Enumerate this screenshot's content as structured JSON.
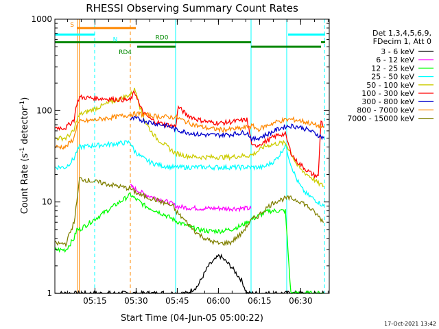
{
  "chart_data": {
    "type": "line",
    "title": "RHESSI Observing Summary Count Rates",
    "xlabel": "Start Time (04-Jun-05 05:00:22)",
    "ylabel_parts": [
      "Count Rate (s",
      "-1",
      " detector",
      "-1",
      ")"
    ],
    "yscale": "log",
    "ylim": [
      1,
      1000
    ],
    "xlim_minutes": [
      0,
      100
    ],
    "x_ticks": [
      {
        "label": "05:15",
        "min": 14.6
      },
      {
        "label": "05:30",
        "min": 29.6
      },
      {
        "label": "05:45",
        "min": 44.6
      },
      {
        "label": "06:00",
        "min": 59.6
      },
      {
        "label": "06:15",
        "min": 74.6
      },
      {
        "label": "06:30",
        "min": 89.6
      }
    ],
    "y_ticks": [
      {
        "label": "1",
        "value": 1
      },
      {
        "label": "10",
        "value": 10
      },
      {
        "label": "100",
        "value": 100
      },
      {
        "label": "1000",
        "value": 1000
      }
    ],
    "legend_header": [
      "Det 1,3,4,5,6,9,",
      "FDecim 1, Att 0"
    ],
    "legend_position": "right",
    "series": [
      {
        "name": "3 - 6 keV",
        "color": "#000000",
        "x": [
          0,
          4,
          7,
          8,
          9,
          27,
          29,
          31,
          33,
          35,
          37,
          39,
          41,
          43,
          44,
          48,
          52,
          56,
          60,
          64,
          68,
          70,
          72,
          74,
          76,
          78,
          80,
          82,
          84,
          86,
          88,
          90,
          92,
          94,
          96,
          98
        ],
        "y": [
          1,
          1,
          1,
          1,
          1,
          1,
          1,
          1,
          1,
          1,
          1,
          1,
          1,
          1,
          1,
          1,
          1.2,
          2.0,
          2.6,
          2.0,
          1.4,
          1,
          1,
          1,
          1,
          1,
          1,
          1,
          1,
          1,
          1,
          1,
          1,
          1,
          1,
          1
        ]
      },
      {
        "name": "6 - 12 keV",
        "color": "#ff00ff",
        "x": [
          27.5,
          29,
          31,
          33,
          35,
          37,
          39,
          41,
          43,
          44,
          46,
          50,
          55,
          60,
          65,
          70,
          71.5
        ],
        "y": [
          15,
          14,
          13,
          12,
          11.5,
          11,
          10.5,
          10,
          9.5,
          9,
          8.8,
          8.6,
          8.5,
          8.5,
          8.5,
          8.5,
          8.5
        ]
      },
      {
        "name": "12 - 25 keV",
        "color": "#00ff00",
        "x": [
          0,
          4,
          7,
          8,
          9,
          27.5,
          29,
          31,
          33,
          35,
          37,
          39,
          41,
          43,
          44,
          48,
          52,
          56,
          60,
          64,
          68,
          70,
          72,
          74,
          76,
          78,
          80,
          82,
          84,
          86,
          88,
          90,
          92,
          94,
          96,
          98
        ],
        "y": [
          3,
          3,
          4,
          5,
          5,
          12,
          11,
          10,
          9,
          8.5,
          8,
          7.5,
          7,
          6.5,
          6.2,
          5.5,
          5,
          4.8,
          4.8,
          5,
          5.5,
          6,
          6.5,
          7,
          7.5,
          8,
          8,
          8,
          8,
          1,
          1,
          1,
          1,
          1,
          1,
          1
        ]
      },
      {
        "name": "25 - 50 keV",
        "color": "#00ffff",
        "x": [
          0,
          4,
          7,
          8,
          9,
          27.5,
          29,
          31,
          33,
          35,
          37,
          39,
          41,
          43,
          44,
          48,
          52,
          56,
          60,
          64,
          68,
          70,
          72,
          74,
          76,
          78,
          80,
          82,
          84,
          86,
          88,
          90,
          92,
          94,
          96,
          98
        ],
        "y": [
          24,
          24,
          30,
          36,
          40,
          45,
          36,
          32,
          29,
          27,
          26,
          25,
          24.5,
          24,
          24,
          24,
          24,
          24,
          24,
          24,
          24,
          24,
          24,
          24,
          24,
          26,
          28,
          33,
          42,
          26,
          18,
          14,
          12,
          11,
          10,
          9
        ]
      },
      {
        "name": "50 - 100 keV",
        "color": "#cccc00",
        "x": [
          0,
          4,
          7,
          8,
          9,
          27.5,
          29,
          30,
          31,
          33,
          35,
          37,
          39,
          41,
          43,
          44,
          48,
          52,
          56,
          60,
          64,
          68,
          70,
          72,
          74,
          76,
          78,
          80,
          82,
          84,
          86,
          88,
          90,
          92,
          94,
          96,
          98
        ],
        "y": [
          50,
          50,
          60,
          80,
          90,
          150,
          170,
          150,
          110,
          75,
          60,
          50,
          45,
          40,
          36,
          34,
          32,
          31,
          31,
          31,
          31,
          32,
          32,
          33,
          36,
          40,
          42,
          43,
          44,
          44,
          35,
          26,
          22,
          20,
          18,
          16,
          15
        ]
      },
      {
        "name": "100 - 300 keV",
        "color": "#ff0000",
        "x": [
          0,
          4,
          7,
          8,
          9,
          27.5,
          29,
          30,
          31,
          33,
          35,
          37,
          39,
          41,
          43,
          44,
          45,
          48,
          52,
          56,
          60,
          64,
          68,
          70,
          72,
          74,
          76,
          78,
          80,
          82,
          84,
          86,
          88,
          90,
          92,
          94,
          96,
          97,
          98
        ],
        "y": [
          65,
          65,
          80,
          120,
          140,
          130,
          160,
          140,
          110,
          90,
          80,
          75,
          72,
          70,
          68,
          67,
          110,
          90,
          80,
          75,
          73,
          75,
          78,
          80,
          40,
          42,
          45,
          48,
          52,
          55,
          55,
          35,
          28,
          25,
          22,
          20,
          19,
          80,
          65
        ]
      },
      {
        "name": "300 - 800 keV",
        "color": "#0000cc",
        "x": [
          27.5,
          29,
          31,
          33,
          35,
          37,
          39,
          41,
          43,
          44,
          48,
          52,
          56,
          60,
          64,
          68,
          70,
          72,
          74,
          76,
          78,
          80,
          82,
          84,
          86,
          88,
          90,
          92,
          94,
          96,
          98
        ],
        "y": [
          80,
          82,
          80,
          77,
          74,
          72,
          70,
          68,
          65,
          62,
          58,
          55,
          54,
          54,
          55,
          57,
          58,
          48,
          50,
          53,
          56,
          60,
          64,
          67,
          68,
          67,
          65,
          62,
          58,
          54,
          50
        ]
      },
      {
        "name": "800 - 7000 keV",
        "color": "#ff8800",
        "x": [
          0,
          4,
          7,
          8,
          9,
          27.5,
          29,
          31,
          33,
          35,
          37,
          39,
          41,
          43,
          44,
          48,
          52,
          56,
          60,
          64,
          68,
          70,
          72,
          74,
          76,
          78,
          80,
          82,
          84,
          86,
          88,
          90,
          92,
          94,
          96,
          98
        ],
        "y": [
          40,
          40,
          50,
          70,
          75,
          90,
          92,
          92,
          90,
          88,
          87,
          86,
          85,
          85,
          85,
          75,
          68,
          64,
          62,
          62,
          64,
          66,
          68,
          62,
          66,
          70,
          74,
          77,
          79,
          80,
          79,
          77,
          74,
          71,
          68,
          66
        ]
      },
      {
        "name": "7000 - 15000 keV",
        "color": "#808000",
        "x": [
          0,
          4,
          7,
          8,
          9,
          27.5,
          29,
          31,
          33,
          35,
          37,
          39,
          41,
          43,
          44,
          48,
          52,
          56,
          60,
          64,
          68,
          70,
          72,
          74,
          76,
          78,
          80,
          82,
          84,
          86,
          88,
          90,
          92,
          94,
          96,
          98
        ],
        "y": [
          3.5,
          3.5,
          6,
          10,
          18,
          14,
          13,
          12,
          11.5,
          11,
          10.5,
          10,
          9.5,
          9,
          8,
          6,
          4.5,
          3.8,
          3.5,
          3.6,
          4.5,
          5.5,
          6.5,
          7,
          8,
          9,
          10,
          10.5,
          11,
          11,
          10.5,
          10,
          9,
          8,
          7,
          6
        ]
      }
    ],
    "annotations": [
      {
        "label": "S",
        "color": "#ff8800",
        "x_start": 8,
        "x_end": 29.5,
        "level": 800
      },
      {
        "label": "N",
        "color": "#00ffff",
        "x_start": 0,
        "x_end": 14.5,
        "level": 680
      },
      {
        "label": "RD0",
        "color": "#008800",
        "x_start": 0,
        "x_end": 44,
        "level": 560
      },
      {
        "label": "RD4",
        "color": "#008800",
        "x_start": 30,
        "x_end": 44,
        "level": 500
      }
    ],
    "bars": [
      {
        "color": "#008800",
        "x_start": 44,
        "x_end": 71.5,
        "level": 560
      },
      {
        "color": "#008800",
        "x_start": 71.5,
        "x_end": 97,
        "level": 500
      },
      {
        "color": "#008800",
        "x_start": 97,
        "x_end": 98.5,
        "level": 560
      },
      {
        "color": "#00ffff",
        "x_start": 85,
        "x_end": 98.5,
        "level": 680
      }
    ],
    "vlines": [
      {
        "x": 0,
        "color": "#00ffff",
        "style": "solid"
      },
      {
        "x": 8.3,
        "color": "#ff8800",
        "style": "solid"
      },
      {
        "x": 8.9,
        "color": "#ff8800",
        "style": "solid"
      },
      {
        "x": 14.5,
        "color": "#00ffff",
        "style": "dashed"
      },
      {
        "x": 27.5,
        "color": "#ff8800",
        "style": "dashed"
      },
      {
        "x": 44,
        "color": "#00ffff",
        "style": "solid"
      },
      {
        "x": 71.5,
        "color": "#00ffff",
        "style": "solid"
      },
      {
        "x": 84.5,
        "color": "#00ffff",
        "style": "solid"
      },
      {
        "x": 98.3,
        "color": "#00ffff",
        "style": "dashed"
      }
    ]
  },
  "footer": {
    "timestamp": "17-Oct-2021 13:42"
  }
}
